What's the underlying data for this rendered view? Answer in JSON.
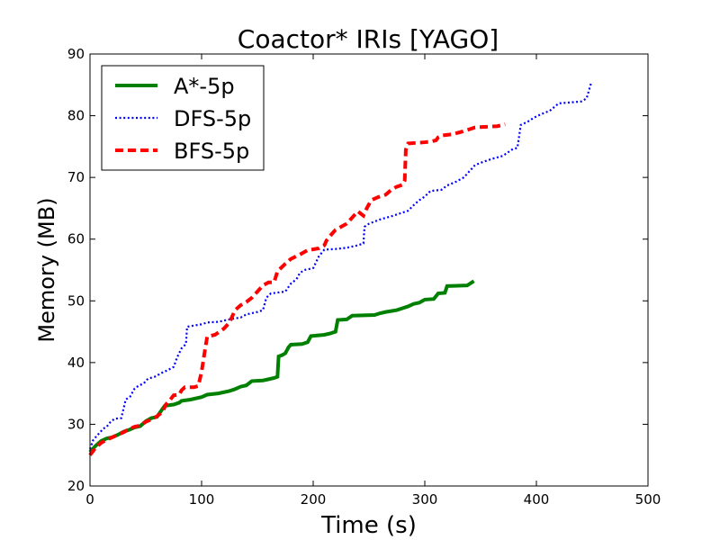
{
  "chart_data": {
    "type": "line",
    "title": "Coactor* IRIs [YAGO]",
    "xlabel": "Time (s)",
    "ylabel": "Memory (MB)",
    "xlim": [
      0,
      500
    ],
    "ylim": [
      20,
      90
    ],
    "xticks": [
      0,
      100,
      200,
      300,
      400,
      500
    ],
    "yticks": [
      20,
      30,
      40,
      50,
      60,
      70,
      80,
      90
    ],
    "grid": false,
    "legend_position": "top-left",
    "series": [
      {
        "name": "A*-5p",
        "color": "#008000",
        "style": "solid",
        "points": [
          [
            0,
            25.5
          ],
          [
            5,
            26.5
          ],
          [
            10,
            27.3
          ],
          [
            15,
            27.7
          ],
          [
            20,
            27.9
          ],
          [
            25,
            28.3
          ],
          [
            30,
            28.8
          ],
          [
            35,
            29.1
          ],
          [
            40,
            29.5
          ],
          [
            45,
            29.7
          ],
          [
            50,
            30.5
          ],
          [
            55,
            31.0
          ],
          [
            60,
            31.2
          ],
          [
            65,
            32.5
          ],
          [
            67,
            33.0
          ],
          [
            75,
            33.2
          ],
          [
            80,
            33.5
          ],
          [
            82,
            33.8
          ],
          [
            90,
            34.0
          ],
          [
            100,
            34.4
          ],
          [
            105,
            34.8
          ],
          [
            115,
            35.0
          ],
          [
            125,
            35.4
          ],
          [
            130,
            35.7
          ],
          [
            135,
            36.1
          ],
          [
            140,
            36.3
          ],
          [
            145,
            37.0
          ],
          [
            155,
            37.1
          ],
          [
            160,
            37.3
          ],
          [
            165,
            37.5
          ],
          [
            168,
            37.7
          ],
          [
            169,
            41.0
          ],
          [
            172,
            41.2
          ],
          [
            175,
            41.5
          ],
          [
            178,
            42.5
          ],
          [
            180,
            42.9
          ],
          [
            190,
            43.0
          ],
          [
            195,
            43.3
          ],
          [
            198,
            44.3
          ],
          [
            210,
            44.5
          ],
          [
            215,
            44.7
          ],
          [
            220,
            45.0
          ],
          [
            222,
            46.9
          ],
          [
            230,
            47.0
          ],
          [
            235,
            47.6
          ],
          [
            255,
            47.7
          ],
          [
            260,
            48.0
          ],
          [
            265,
            48.2
          ],
          [
            275,
            48.5
          ],
          [
            280,
            48.8
          ],
          [
            285,
            49.1
          ],
          [
            290,
            49.5
          ],
          [
            295,
            49.7
          ],
          [
            300,
            50.2
          ],
          [
            308,
            50.3
          ],
          [
            312,
            51.2
          ],
          [
            318,
            51.3
          ],
          [
            320,
            52.4
          ],
          [
            338,
            52.5
          ],
          [
            344,
            53.2
          ]
        ]
      },
      {
        "name": "DFS-5p",
        "color": "#0000ff",
        "style": "dotted",
        "points": [
          [
            0,
            26.0
          ],
          [
            3,
            27.5
          ],
          [
            8,
            28.5
          ],
          [
            12,
            29.3
          ],
          [
            15,
            29.6
          ],
          [
            18,
            30.3
          ],
          [
            22,
            30.9
          ],
          [
            28,
            31.0
          ],
          [
            30,
            32.5
          ],
          [
            32,
            34.0
          ],
          [
            36,
            34.5
          ],
          [
            40,
            35.8
          ],
          [
            44,
            36.3
          ],
          [
            48,
            36.6
          ],
          [
            52,
            37.4
          ],
          [
            58,
            37.7
          ],
          [
            64,
            38.3
          ],
          [
            70,
            38.8
          ],
          [
            75,
            39.3
          ],
          [
            78,
            40.8
          ],
          [
            82,
            42.3
          ],
          [
            86,
            43.0
          ],
          [
            87,
            45.8
          ],
          [
            93,
            46.0
          ],
          [
            100,
            46.2
          ],
          [
            105,
            46.5
          ],
          [
            115,
            46.6
          ],
          [
            125,
            47.0
          ],
          [
            135,
            47.3
          ],
          [
            140,
            47.8
          ],
          [
            145,
            48.0
          ],
          [
            150,
            48.2
          ],
          [
            155,
            48.5
          ],
          [
            158,
            50.5
          ],
          [
            162,
            51.2
          ],
          [
            175,
            51.5
          ],
          [
            180,
            52.8
          ],
          [
            185,
            53.5
          ],
          [
            188,
            54.5
          ],
          [
            192,
            55.0
          ],
          [
            200,
            55.3
          ],
          [
            205,
            57.2
          ],
          [
            210,
            58.3
          ],
          [
            220,
            58.4
          ],
          [
            230,
            58.6
          ],
          [
            240,
            59.0
          ],
          [
            245,
            59.3
          ],
          [
            246,
            62.0
          ],
          [
            250,
            62.5
          ],
          [
            260,
            63.2
          ],
          [
            270,
            63.7
          ],
          [
            275,
            64.0
          ],
          [
            280,
            64.3
          ],
          [
            285,
            64.6
          ],
          [
            290,
            65.5
          ],
          [
            295,
            66.3
          ],
          [
            300,
            66.9
          ],
          [
            305,
            67.8
          ],
          [
            315,
            68.0
          ],
          [
            320,
            68.7
          ],
          [
            328,
            69.3
          ],
          [
            335,
            70.0
          ],
          [
            340,
            71.0
          ],
          [
            345,
            72.0
          ],
          [
            352,
            72.5
          ],
          [
            360,
            73.0
          ],
          [
            370,
            73.5
          ],
          [
            378,
            74.5
          ],
          [
            383,
            74.8
          ],
          [
            386,
            78.5
          ],
          [
            392,
            79.0
          ],
          [
            398,
            79.7
          ],
          [
            405,
            80.3
          ],
          [
            412,
            80.8
          ],
          [
            420,
            82.0
          ],
          [
            440,
            82.3
          ],
          [
            445,
            82.8
          ],
          [
            449,
            85.3
          ]
        ]
      },
      {
        "name": "BFS-5p",
        "color": "#ff0000",
        "style": "dashed",
        "points": [
          [
            0,
            25.0
          ],
          [
            5,
            26.2
          ],
          [
            10,
            27.0
          ],
          [
            15,
            27.5
          ],
          [
            20,
            27.9
          ],
          [
            25,
            28.3
          ],
          [
            30,
            28.7
          ],
          [
            35,
            29.2
          ],
          [
            40,
            29.6
          ],
          [
            45,
            29.8
          ],
          [
            50,
            30.4
          ],
          [
            55,
            30.8
          ],
          [
            60,
            31.3
          ],
          [
            65,
            32.0
          ],
          [
            68,
            33.2
          ],
          [
            72,
            34.0
          ],
          [
            75,
            34.7
          ],
          [
            80,
            34.8
          ],
          [
            82,
            35.5
          ],
          [
            85,
            36.0
          ],
          [
            93,
            36.0
          ],
          [
            97,
            36.2
          ],
          [
            100,
            38.5
          ],
          [
            103,
            42.0
          ],
          [
            105,
            44.2
          ],
          [
            112,
            44.5
          ],
          [
            120,
            45.5
          ],
          [
            125,
            46.5
          ],
          [
            130,
            48.5
          ],
          [
            135,
            49.3
          ],
          [
            140,
            49.8
          ],
          [
            145,
            50.5
          ],
          [
            150,
            51.5
          ],
          [
            155,
            52.5
          ],
          [
            160,
            53.0
          ],
          [
            165,
            53.0
          ],
          [
            168,
            54.8
          ],
          [
            175,
            56.0
          ],
          [
            180,
            56.8
          ],
          [
            188,
            57.5
          ],
          [
            195,
            58.2
          ],
          [
            205,
            58.5
          ],
          [
            210,
            59.0
          ],
          [
            212,
            59.8
          ],
          [
            215,
            60.5
          ],
          [
            220,
            61.5
          ],
          [
            225,
            62.0
          ],
          [
            230,
            62.5
          ],
          [
            235,
            63.5
          ],
          [
            240,
            64.5
          ],
          [
            245,
            63.8
          ],
          [
            248,
            65.0
          ],
          [
            252,
            66.3
          ],
          [
            258,
            66.8
          ],
          [
            265,
            67.2
          ],
          [
            270,
            68.0
          ],
          [
            275,
            68.5
          ],
          [
            280,
            68.8
          ],
          [
            282,
            69.5
          ],
          [
            283,
            74.5
          ],
          [
            285,
            75.5
          ],
          [
            300,
            75.7
          ],
          [
            305,
            75.8
          ],
          [
            310,
            76.0
          ],
          [
            312,
            76.5
          ],
          [
            315,
            76.8
          ],
          [
            325,
            77.0
          ],
          [
            335,
            77.5
          ],
          [
            340,
            77.8
          ],
          [
            345,
            78.1
          ],
          [
            355,
            78.2
          ],
          [
            365,
            78.3
          ],
          [
            372,
            78.6
          ]
        ]
      }
    ]
  }
}
